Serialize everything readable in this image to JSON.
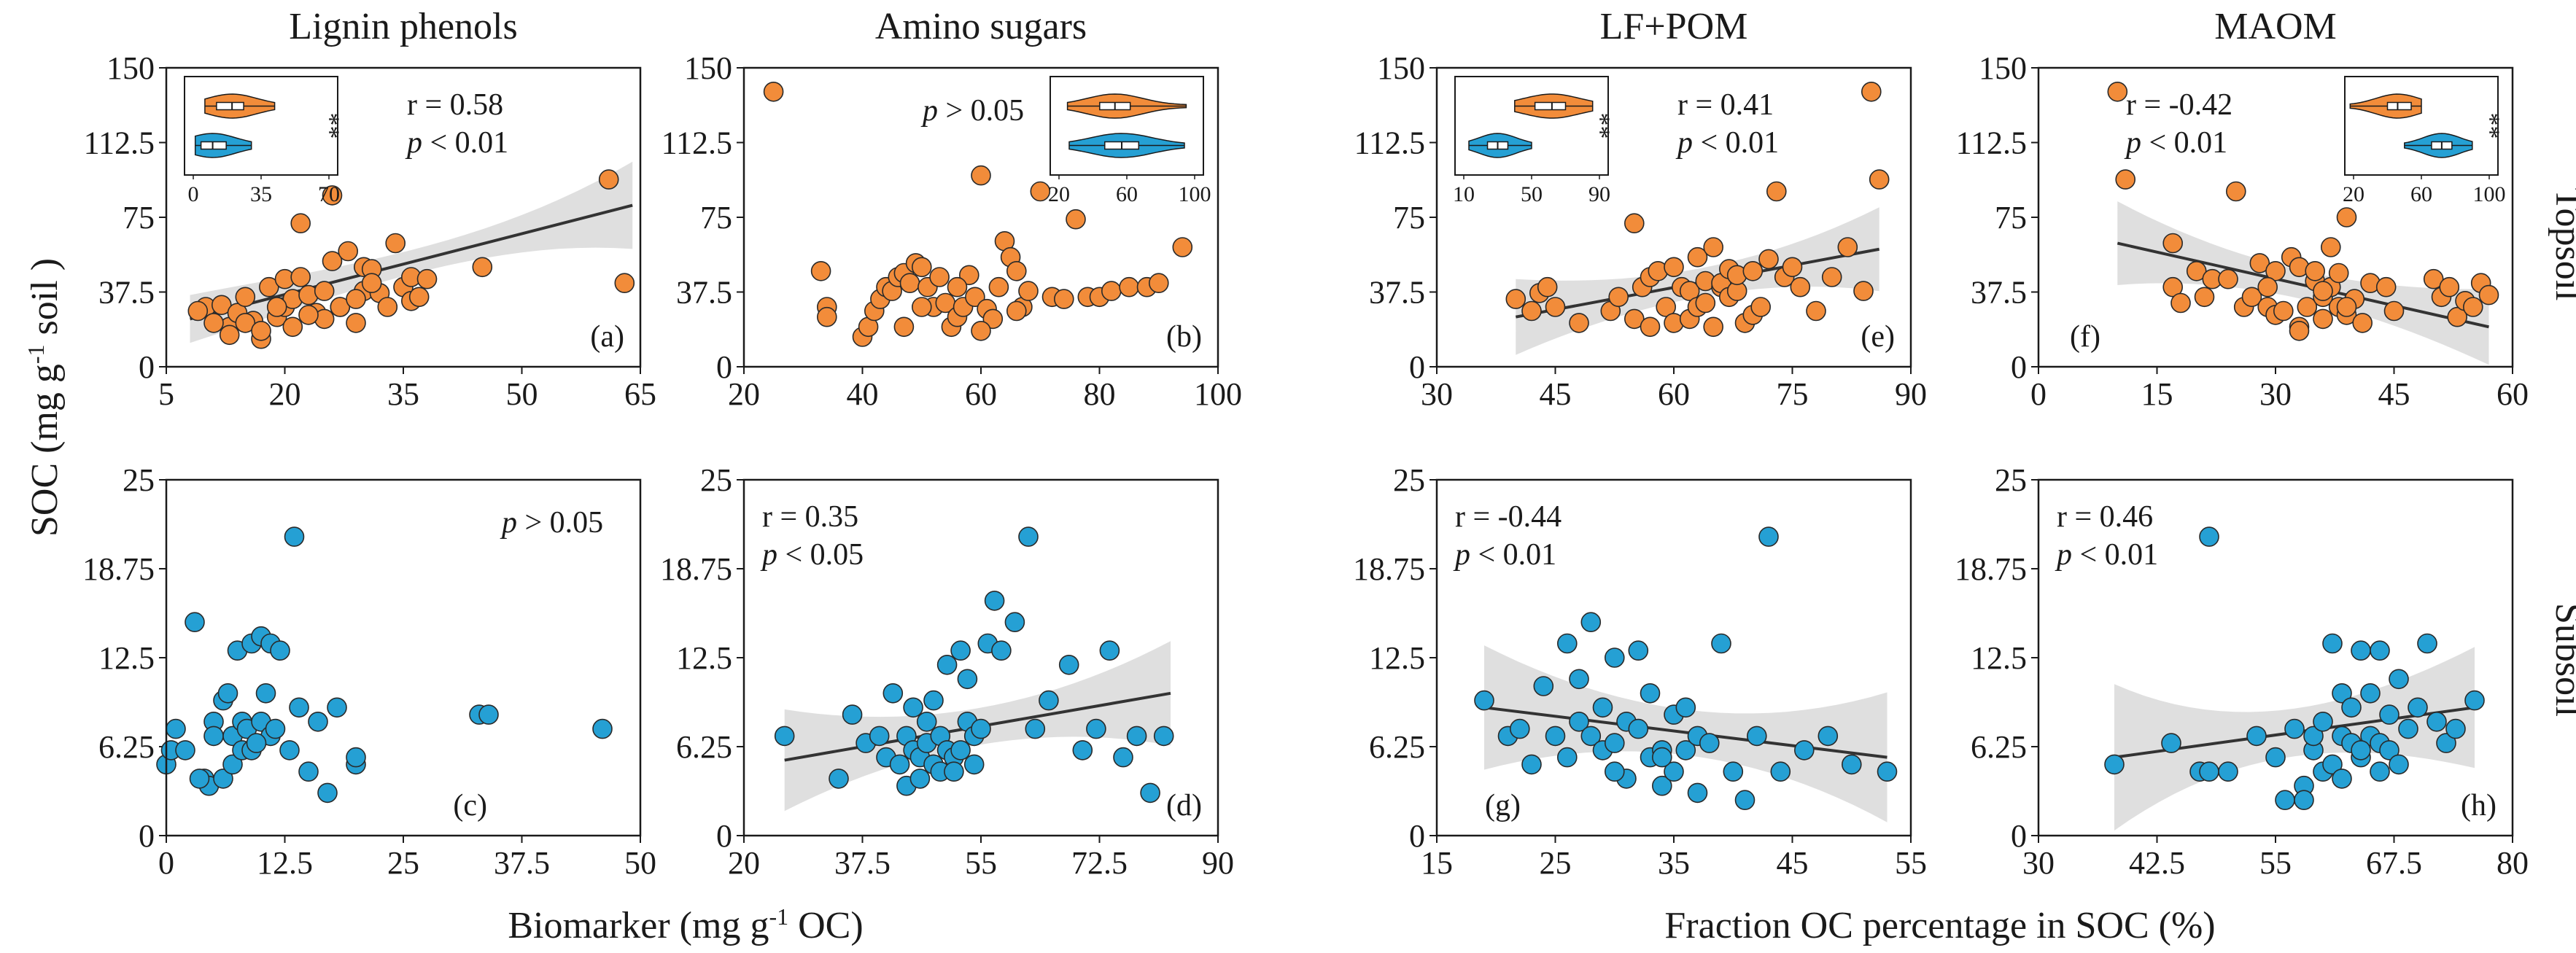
{
  "colors": {
    "top": "#f28c3a",
    "sub": "#25a0d4",
    "band": "#c9c9c9",
    "line": "#333333"
  },
  "figure": {
    "row_labels": [
      "Topsoil",
      "Subsoil"
    ],
    "xlabel_left": "Biomarker (mg g-1 OC)",
    "xlabel_right": "Fraction OC percentage in SOC (%)",
    "ylabel": "SOC (mg g-1 soil )"
  },
  "chart_data": [
    {
      "type": "scatter",
      "panel": "(a)",
      "title": "Lignin phenols",
      "soil": "Topsoil",
      "xlim": [
        5,
        65
      ],
      "xticks": [
        5,
        20,
        35,
        50,
        65
      ],
      "ylim": [
        0,
        150
      ],
      "yticks": [
        "0",
        "37.5",
        "75",
        "112.5",
        "150"
      ],
      "r": "r = 0.58",
      "p": "p < 0.01",
      "fit": {
        "x1": 8,
        "y1": 24,
        "x2": 64,
        "y2": 81,
        "w1": 6,
        "w2": 16
      },
      "inset": {
        "pos": "left",
        "ticks": [
          "0",
          "35",
          "70"
        ],
        "min": 0,
        "max": 70,
        "top": {
          "q1": 12,
          "med": 20,
          "q3": 26,
          "w1": 6,
          "w2": 42
        },
        "sub": {
          "q1": 4,
          "med": 10,
          "q3": 17,
          "w1": 1,
          "w2": 30
        },
        "sig": "**"
      },
      "x": [
        10,
        12,
        13,
        14,
        15,
        16,
        17,
        18,
        19,
        20,
        20,
        21,
        22,
        23,
        24,
        25,
        26,
        27,
        28,
        29,
        30,
        30,
        31,
        32,
        33,
        34,
        35,
        36,
        38,
        13,
        15,
        17,
        19,
        21,
        23,
        25,
        27,
        29,
        31,
        36,
        37,
        45,
        22,
        26,
        61,
        63,
        9,
        11
      ],
      "y": [
        30,
        31,
        20,
        27,
        35,
        23,
        14,
        40,
        25,
        44,
        30,
        34,
        45,
        36,
        27,
        24,
        53,
        30,
        58,
        22,
        50,
        38,
        49,
        37,
        30,
        62,
        40,
        45,
        44,
        16,
        22,
        18,
        30,
        20,
        26,
        38,
        30,
        34,
        42,
        33,
        35,
        50,
        72,
        86,
        94,
        42,
        28,
        22
      ]
    },
    {
      "type": "scatter",
      "panel": "(b)",
      "title": "Amino sugars",
      "soil": "Topsoil",
      "xlim": [
        20,
        100
      ],
      "xticks": [
        20,
        40,
        60,
        80,
        100
      ],
      "ylim": [
        0,
        150
      ],
      "yticks": [
        "0",
        "37.5",
        "75",
        "112.5",
        "150"
      ],
      "p": "p > 0.05",
      "inset": {
        "pos": "right",
        "ticks": [
          "20",
          "60",
          "100"
        ],
        "min": 20,
        "max": 100,
        "top": {
          "q1": 44,
          "med": 53,
          "q3": 62,
          "w1": 25,
          "w2": 95
        },
        "sub": {
          "q1": 47,
          "med": 57,
          "q3": 67,
          "w1": 26,
          "w2": 94
        },
        "sig": ""
      },
      "x": [
        25,
        33,
        34,
        34,
        40,
        41,
        42,
        43,
        44,
        45,
        46,
        47,
        48,
        49,
        50,
        51,
        52,
        53,
        54,
        55,
        56,
        57,
        58,
        59,
        60,
        61,
        62,
        63,
        64,
        65,
        66,
        67,
        68,
        70,
        72,
        74,
        76,
        78,
        80,
        82,
        85,
        88,
        90,
        94,
        47,
        50,
        56,
        60,
        66
      ],
      "y": [
        138,
        48,
        30,
        25,
        15,
        20,
        28,
        34,
        40,
        38,
        45,
        47,
        42,
        52,
        50,
        40,
        30,
        45,
        32,
        20,
        25,
        30,
        46,
        35,
        96,
        29,
        24,
        40,
        63,
        55,
        48,
        30,
        38,
        88,
        35,
        34,
        74,
        35,
        35,
        38,
        40,
        40,
        42,
        60,
        20,
        30,
        40,
        18,
        28
      ]
    },
    {
      "type": "scatter",
      "panel": "(e)",
      "title": "LF+POM",
      "soil": "Topsoil",
      "xlim": [
        30,
        90
      ],
      "xticks": [
        30,
        45,
        60,
        75,
        90
      ],
      "ylim": [
        0,
        150
      ],
      "yticks": [
        "0",
        "37.5",
        "75",
        "112.5",
        "150"
      ],
      "r": "r = 0.41",
      "p": "p < 0.01",
      "fit": {
        "x1": 40,
        "y1": 25,
        "x2": 86,
        "y2": 59,
        "w1": 12,
        "w2": 14
      },
      "inset": {
        "pos": "left",
        "ticks": [
          "10",
          "50",
          "90"
        ],
        "min": 10,
        "max": 90,
        "top": {
          "q1": 52,
          "med": 62,
          "q3": 70,
          "w1": 40,
          "w2": 86
        },
        "sub": {
          "q1": 24,
          "med": 30,
          "q3": 36,
          "w1": 13,
          "w2": 50
        },
        "sig": "**"
      },
      "x": [
        40,
        42,
        43,
        44,
        45,
        48,
        52,
        53,
        55,
        56,
        57,
        58,
        59,
        60,
        60,
        61,
        62,
        62,
        63,
        63,
        64,
        64,
        65,
        65,
        66,
        66,
        67,
        67,
        68,
        68,
        69,
        70,
        70,
        71,
        72,
        73,
        74,
        75,
        76,
        78,
        80,
        82,
        84,
        85,
        86,
        55,
        57
      ],
      "y": [
        34,
        28,
        37,
        40,
        30,
        22,
        28,
        35,
        24,
        40,
        45,
        48,
        30,
        50,
        22,
        40,
        38,
        24,
        55,
        30,
        32,
        43,
        60,
        20,
        40,
        42,
        49,
        35,
        38,
        46,
        22,
        26,
        48,
        30,
        54,
        88,
        45,
        50,
        40,
        28,
        45,
        60,
        38,
        138,
        94,
        72,
        20
      ]
    },
    {
      "type": "scatter",
      "panel": "(f)",
      "title": "MAOM",
      "soil": "Topsoil",
      "xlim": [
        0,
        60
      ],
      "xticks": [
        0,
        15,
        30,
        45,
        60
      ],
      "ylim": [
        0,
        150
      ],
      "yticks": [
        "0",
        "37.5",
        "75",
        "112.5",
        "150"
      ],
      "r": "r = -0.42",
      "p": "p < 0.01",
      "fit": {
        "x1": 10,
        "y1": 62,
        "x2": 57,
        "y2": 20,
        "w1": 14,
        "w2": 12
      },
      "inset": {
        "pos": "right",
        "ticks": [
          "20",
          "60",
          "100"
        ],
        "min": 20,
        "max": 100,
        "top": {
          "q1": 40,
          "med": 46,
          "q3": 54,
          "w1": 18,
          "w2": 60
        },
        "sub": {
          "q1": 66,
          "med": 72,
          "q3": 78,
          "w1": 50,
          "w2": 90
        },
        "sig": "**"
      },
      "x": [
        10,
        11,
        17,
        17,
        18,
        20,
        21,
        22,
        24,
        25,
        26,
        27,
        28,
        29,
        30,
        30,
        31,
        32,
        33,
        33,
        34,
        35,
        35,
        36,
        36,
        37,
        37,
        38,
        38,
        39,
        39,
        40,
        41,
        42,
        44,
        45,
        50,
        51,
        52,
        53,
        54,
        55,
        56,
        57,
        29,
        33,
        36,
        39
      ],
      "y": [
        138,
        94,
        62,
        40,
        32,
        48,
        35,
        44,
        44,
        88,
        30,
        35,
        52,
        30,
        48,
        26,
        28,
        55,
        50,
        20,
        30,
        43,
        48,
        35,
        24,
        40,
        60,
        47,
        30,
        26,
        75,
        34,
        22,
        42,
        40,
        28,
        44,
        35,
        40,
        25,
        33,
        30,
        42,
        36,
        40,
        18,
        38,
        30
      ]
    },
    {
      "type": "scatter",
      "panel": "(c)",
      "title": "",
      "soil": "Subsoil",
      "xlim": [
        0,
        50
      ],
      "xticks": [
        "0",
        "12.5",
        "25",
        "37.5",
        "50"
      ],
      "ylim": [
        0,
        25
      ],
      "yticks": [
        "0",
        "6.25",
        "12.5",
        "18.75",
        "25"
      ],
      "p": "p > 0.05",
      "x": [
        0,
        0.5,
        1,
        2,
        3,
        4,
        4.5,
        5,
        5,
        6,
        6,
        6.5,
        7,
        7,
        7.5,
        8,
        8,
        8.5,
        9,
        9,
        10,
        10,
        10.5,
        11,
        11,
        11.5,
        12,
        13,
        13.5,
        14,
        15,
        16,
        17,
        18,
        20,
        20,
        33,
        34,
        46,
        3.5,
        9.5
      ],
      "y": [
        5,
        6,
        7.5,
        6,
        15,
        4,
        3.5,
        8,
        7,
        9.5,
        4,
        10,
        7,
        5,
        13,
        6,
        8,
        7.5,
        13.5,
        6,
        14,
        8,
        10,
        13.5,
        7,
        7.5,
        13,
        6,
        21,
        9,
        4.5,
        8,
        3,
        9,
        5,
        5.5,
        8.5,
        8.5,
        7.5,
        4,
        6.5
      ]
    },
    {
      "type": "scatter",
      "panel": "(d)",
      "title": "",
      "soil": "Subsoil",
      "xlim": [
        20,
        90
      ],
      "xticks": [
        "20",
        "37.5",
        "55",
        "72.5",
        "90"
      ],
      "ylim": [
        0,
        25
      ],
      "yticks": [
        "0",
        "6.25",
        "12.5",
        "18.75",
        "25"
      ],
      "r": "r = 0.35",
      "p": "p < 0.05",
      "fit": {
        "x1": 26,
        "y1": 5.3,
        "x2": 83,
        "y2": 10,
        "w1": 2.3,
        "w2": 2.4
      },
      "x": [
        26,
        34,
        36,
        38,
        40,
        41,
        42,
        43,
        44,
        44,
        45,
        45,
        46,
        46,
        47,
        47,
        48,
        48,
        49,
        49,
        50,
        50,
        51,
        51,
        52,
        52,
        53,
        53,
        54,
        54,
        55,
        56,
        57,
        58,
        60,
        62,
        63,
        65,
        68,
        70,
        72,
        74,
        76,
        78,
        80,
        82
      ],
      "y": [
        7,
        4,
        8.5,
        6.5,
        7,
        5.5,
        10,
        5,
        7,
        3.5,
        9,
        6,
        5.5,
        4,
        8,
        6.5,
        9.5,
        5,
        4.5,
        7,
        12,
        6,
        5.5,
        4.5,
        13,
        6,
        8,
        11,
        7,
        5,
        7.5,
        13.5,
        16.5,
        13,
        15,
        21,
        7.5,
        9.5,
        12,
        6,
        7.5,
        13,
        5.5,
        7,
        3,
        7
      ]
    },
    {
      "type": "scatter",
      "panel": "(g)",
      "title": "",
      "soil": "Subsoil",
      "xlim": [
        15,
        55
      ],
      "xticks": [
        15,
        25,
        35,
        45,
        55
      ],
      "ylim": [
        0,
        25
      ],
      "yticks": [
        "0",
        "6.25",
        "12.5",
        "18.75",
        "25"
      ],
      "r": "r = -0.44",
      "p": "p < 0.01",
      "fit": {
        "x1": 19,
        "y1": 9,
        "x2": 53,
        "y2": 5.5,
        "w1": 2.8,
        "w2": 3
      },
      "x": [
        19,
        21,
        22,
        23,
        24,
        25,
        26,
        26,
        27,
        27,
        28,
        28,
        29,
        29,
        30,
        30,
        31,
        31,
        32,
        32,
        33,
        33,
        34,
        34,
        35,
        35,
        36,
        36,
        37,
        37,
        38,
        39,
        40,
        41,
        42,
        43,
        44,
        46,
        48,
        50,
        53,
        30,
        34
      ],
      "y": [
        9.5,
        7,
        7.5,
        5,
        10.5,
        7,
        13.5,
        5.5,
        8,
        11,
        7,
        15,
        9,
        6,
        6.5,
        12.5,
        8,
        4,
        7.5,
        13,
        5.5,
        10,
        6,
        3.5,
        8.5,
        4.5,
        9,
        6,
        7,
        3,
        6.5,
        13.5,
        4.5,
        2.5,
        7,
        21,
        4.5,
        6,
        7,
        5,
        4.5,
        4.5,
        5.5
      ]
    },
    {
      "type": "scatter",
      "panel": "(h)",
      "title": "",
      "soil": "Subsoil",
      "xlim": [
        30,
        80
      ],
      "xticks": [
        "30",
        "42.5",
        "55",
        "67.5",
        "80"
      ],
      "ylim": [
        0,
        25
      ],
      "yticks": [
        "0",
        "6.25",
        "12.5",
        "18.75",
        "25"
      ],
      "r": "r = 0.46",
      "p": "p < 0.01",
      "fit": {
        "x1": 38,
        "y1": 5.5,
        "x2": 76,
        "y2": 9,
        "w1": 3.5,
        "w2": 2.6
      },
      "x": [
        38,
        44,
        47,
        48,
        50,
        53,
        55,
        56,
        57,
        58,
        59,
        59,
        60,
        60,
        61,
        61,
        62,
        62,
        63,
        63,
        64,
        64,
        65,
        65,
        66,
        66,
        67,
        67,
        68,
        68,
        69,
        70,
        71,
        72,
        73,
        74,
        76,
        48,
        58,
        62,
        64,
        66
      ],
      "y": [
        5,
        6.5,
        4.5,
        21,
        4.5,
        7,
        5.5,
        2.5,
        7.5,
        3.5,
        6,
        7,
        4.5,
        8,
        13.5,
        5,
        7,
        10,
        6.5,
        9,
        13,
        5.5,
        10,
        7,
        6.5,
        13,
        8.5,
        6,
        5,
        11,
        7.5,
        9,
        13.5,
        8,
        6.5,
        7.5,
        9.5,
        4.5,
        2.5,
        4,
        6,
        4.5
      ]
    }
  ]
}
